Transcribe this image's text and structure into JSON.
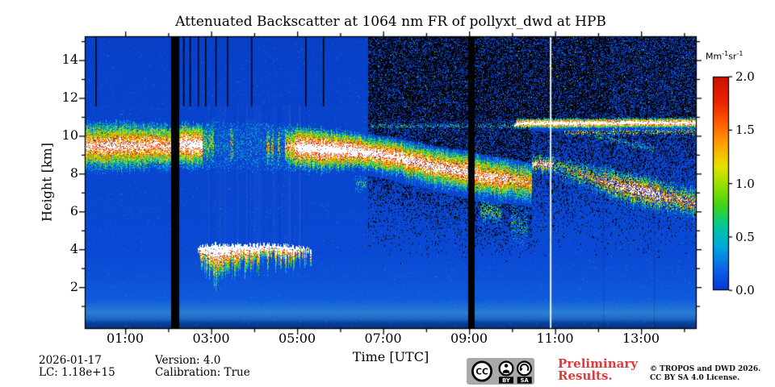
{
  "colors": {
    "background": "#ffffff",
    "plot_base_blue": "#0945d2",
    "text": "#000000",
    "preliminary_red": "#e03a3a",
    "badge_gray": "#a9a9a9",
    "colorbar_top_red": "#cc0f00",
    "data_gap_black": "#000000",
    "marker_white_line": "#f8f8f3"
  },
  "chart_data": {
    "type": "heatmap",
    "title": "Attenuated Backscatter at 1064 nm FR of pollyxt_dwd at HPB",
    "xlabel": "Time [UTC]",
    "ylabel": "Height [km]",
    "x_range_utc_hours": [
      0.06,
      14.3
    ],
    "y_range_km": [
      0,
      15.25
    ],
    "grid": false,
    "x_major_ticks": {
      "values": [
        1,
        3,
        5,
        7,
        9,
        11,
        13
      ],
      "labels": [
        "01:00",
        "03:00",
        "05:00",
        "07:00",
        "09:00",
        "11:00",
        "13:00"
      ]
    },
    "x_minor_step_hours": 1,
    "y_major_ticks": {
      "values": [
        2,
        4,
        6,
        8,
        10,
        12,
        14
      ],
      "labels": [
        "2",
        "4",
        "6",
        "8",
        "10",
        "12",
        "14"
      ]
    },
    "y_minor_step_km": 1,
    "colorbar": {
      "unit_base1": "Mm",
      "unit_exp1": "-1",
      "unit_base2": "sr",
      "unit_exp2": "-1",
      "min": 0,
      "max": 2,
      "tick_values": [
        0,
        0.5,
        1,
        1.5,
        2
      ],
      "tick_labels": [
        "0.0",
        "0.5",
        "1.0",
        "1.5",
        "2.0"
      ],
      "position": "right"
    },
    "features": {
      "data_gaps_utc": [
        [
          2.07,
          2.26
        ],
        [
          8.98,
          9.13
        ]
      ],
      "white_marker_line_utc": 10.88,
      "faint_lines_utc": [
        12.12,
        13.3
      ],
      "dark_noise_region_start_utc": 6.634,
      "dark_noise_ceiling_km": 10.85,
      "dark_noise_lower_limit_km": 3.15,
      "calibration_dash_times_utc": [
        0.31,
        2.35,
        2.5,
        2.69,
        2.86,
        3.1,
        3.37,
        3.93,
        5.19,
        5.6
      ],
      "calibration_dash_bottom_km": 11.55,
      "attenuation_gap_utc": [
        2.9,
        5.25
      ],
      "cirrus_band": {
        "pts": [
          [
            0.06,
            10.7,
            8.0
          ],
          [
            1.0,
            10.75,
            8.05
          ],
          [
            2.07,
            10.6,
            8.1
          ],
          [
            2.26,
            10.7,
            8.2
          ],
          [
            3.0,
            10.75,
            8.2
          ],
          [
            4.0,
            10.7,
            8.15
          ],
          [
            4.95,
            10.55,
            8.1
          ],
          [
            5.6,
            10.4,
            8.0
          ],
          [
            6.2,
            10.2,
            8.1
          ],
          [
            6.63,
            10.0,
            8.1
          ],
          [
            7.2,
            9.85,
            7.8
          ],
          [
            7.9,
            9.5,
            7.4
          ],
          [
            8.6,
            9.2,
            7.0
          ],
          [
            8.98,
            9.15,
            6.85
          ],
          [
            9.13,
            9.0,
            6.7
          ],
          [
            9.6,
            8.8,
            6.6
          ],
          [
            10.1,
            8.65,
            6.5
          ],
          [
            10.45,
            8.45,
            6.4
          ]
        ],
        "segs": [
          [
            0.06,
            2.07,
            1.02,
            0.04
          ],
          [
            2.26,
            2.8,
            1.18,
            0.04
          ],
          [
            2.8,
            3.05,
            0.5,
            0.25
          ],
          [
            3.05,
            4.7,
            0.12,
            0.3
          ],
          [
            4.7,
            4.95,
            0.85,
            0.1
          ],
          [
            4.95,
            6.63,
            1.22,
            0.03
          ],
          [
            6.63,
            7.6,
            1.12,
            0.04
          ],
          [
            7.6,
            9.0,
            1.08,
            0.05
          ],
          [
            9.13,
            9.9,
            1.0,
            0.06
          ],
          [
            9.9,
            10.45,
            0.85,
            0.1
          ]
        ],
        "cols": [
          [
            3.43,
            3.5,
            0.65
          ],
          [
            4.27,
            4.36,
            0.7
          ],
          [
            4.39,
            4.45,
            0.6
          ],
          [
            4.54,
            4.6,
            0.6
          ]
        ],
        "jt": 6,
        "jb": 8
      },
      "high_thin_layer": {
        "pts": [
          [
            6.7,
            10.62,
            10.42
          ],
          [
            10.05,
            10.62,
            10.42
          ],
          [
            10.1,
            10.92,
            10.38
          ],
          [
            14.29,
            10.95,
            10.4
          ]
        ],
        "segs": [
          [
            6.7,
            10.05,
            0.32,
            0.4
          ],
          [
            10.05,
            14.29,
            1.3,
            0.02
          ]
        ],
        "jt": 2,
        "jb": 2
      },
      "upper_speckle_fringe": {
        "pts": [
          [
            11.2,
            10.35,
            10.0
          ],
          [
            14.29,
            10.4,
            10.05
          ]
        ],
        "amp": 0.8,
        "patchy": 0.62,
        "jt": 3,
        "jb": 4
      },
      "fragments": {
        "pts": [
          [
            10.45,
            8.95,
            8.15
          ],
          [
            10.9,
            8.9,
            7.95
          ],
          [
            11.3,
            8.75,
            7.5
          ],
          [
            11.8,
            8.5,
            7.1
          ],
          [
            12.3,
            8.25,
            6.6
          ],
          [
            12.8,
            8.05,
            6.25
          ],
          [
            13.3,
            7.8,
            6.0
          ],
          [
            13.8,
            7.5,
            5.8
          ],
          [
            14.29,
            7.2,
            5.6
          ]
        ],
        "segs": [
          [
            10.45,
            10.95,
            1.05,
            0.3
          ],
          [
            10.95,
            11.5,
            0.6,
            0.5
          ],
          [
            11.5,
            12.1,
            0.75,
            0.45
          ],
          [
            12.1,
            12.75,
            0.95,
            0.35
          ],
          [
            12.75,
            13.45,
            1.1,
            0.3
          ],
          [
            13.45,
            14.29,
            0.85,
            0.4
          ]
        ],
        "jt": 8,
        "jb": 10
      },
      "diagonal_wisp": {
        "pts": [
          [
            11.9,
            10.2,
            9.8
          ],
          [
            13.3,
            9.5,
            9.1
          ]
        ],
        "amp": 0.35,
        "patchy": 0.6,
        "jt": 4,
        "jb": 5
      },
      "tails": [
        {
          "pts": [
            [
              9.25,
              6.6,
              5.4
            ],
            [
              9.75,
              6.5,
              5.3
            ]
          ],
          "amp": 0.5,
          "patchy": 0.45,
          "jt": 5,
          "jb": 8
        },
        {
          "pts": [
            [
              9.95,
              6.4,
              4.2
            ],
            [
              10.35,
              6.2,
              4.0
            ]
          ],
          "amp": 0.3,
          "patchy": 0.6,
          "jt": 4,
          "jb": 8
        },
        {
          "pts": [
            [
              6.35,
              7.9,
              7.1
            ],
            [
              6.6,
              7.8,
              7.0
            ]
          ],
          "amp": 0.35,
          "patchy": 0.5,
          "jt": 4,
          "jb": 5
        }
      ],
      "low_cloud": {
        "pts": [
          [
            2.69,
            4.1,
            3.5
          ],
          [
            2.85,
            4.2,
            3.2
          ],
          [
            3.0,
            4.25,
            2.6
          ],
          [
            3.1,
            4.3,
            2.1
          ],
          [
            3.25,
            4.2,
            2.4
          ],
          [
            3.5,
            4.2,
            2.8
          ],
          [
            3.75,
            4.25,
            3.0
          ],
          [
            4.0,
            4.2,
            3.1
          ],
          [
            4.3,
            4.25,
            3.2
          ],
          [
            4.6,
            4.2,
            3.3
          ],
          [
            4.9,
            4.15,
            3.3
          ],
          [
            5.1,
            4.1,
            3.4
          ],
          [
            5.32,
            4.0,
            3.6
          ]
        ],
        "topHeavy": true,
        "amp": 1.15,
        "patchy": 0.05,
        "jt": 6,
        "jb": 28
      }
    }
  },
  "footer": {
    "date": "2026-01-17",
    "lc": "LC: 1.18e+15",
    "version": "Version: 4.0",
    "calibration": "Calibration: True",
    "preliminary_line1": "Preliminary",
    "preliminary_line2": "Results.",
    "copyright_line1": "© TROPOS and DWD 2026.",
    "copyright_line2": "CC BY SA 4.0 License.",
    "cc_badge": {
      "cc": "CC",
      "by": "BY",
      "sa": "SA"
    }
  }
}
